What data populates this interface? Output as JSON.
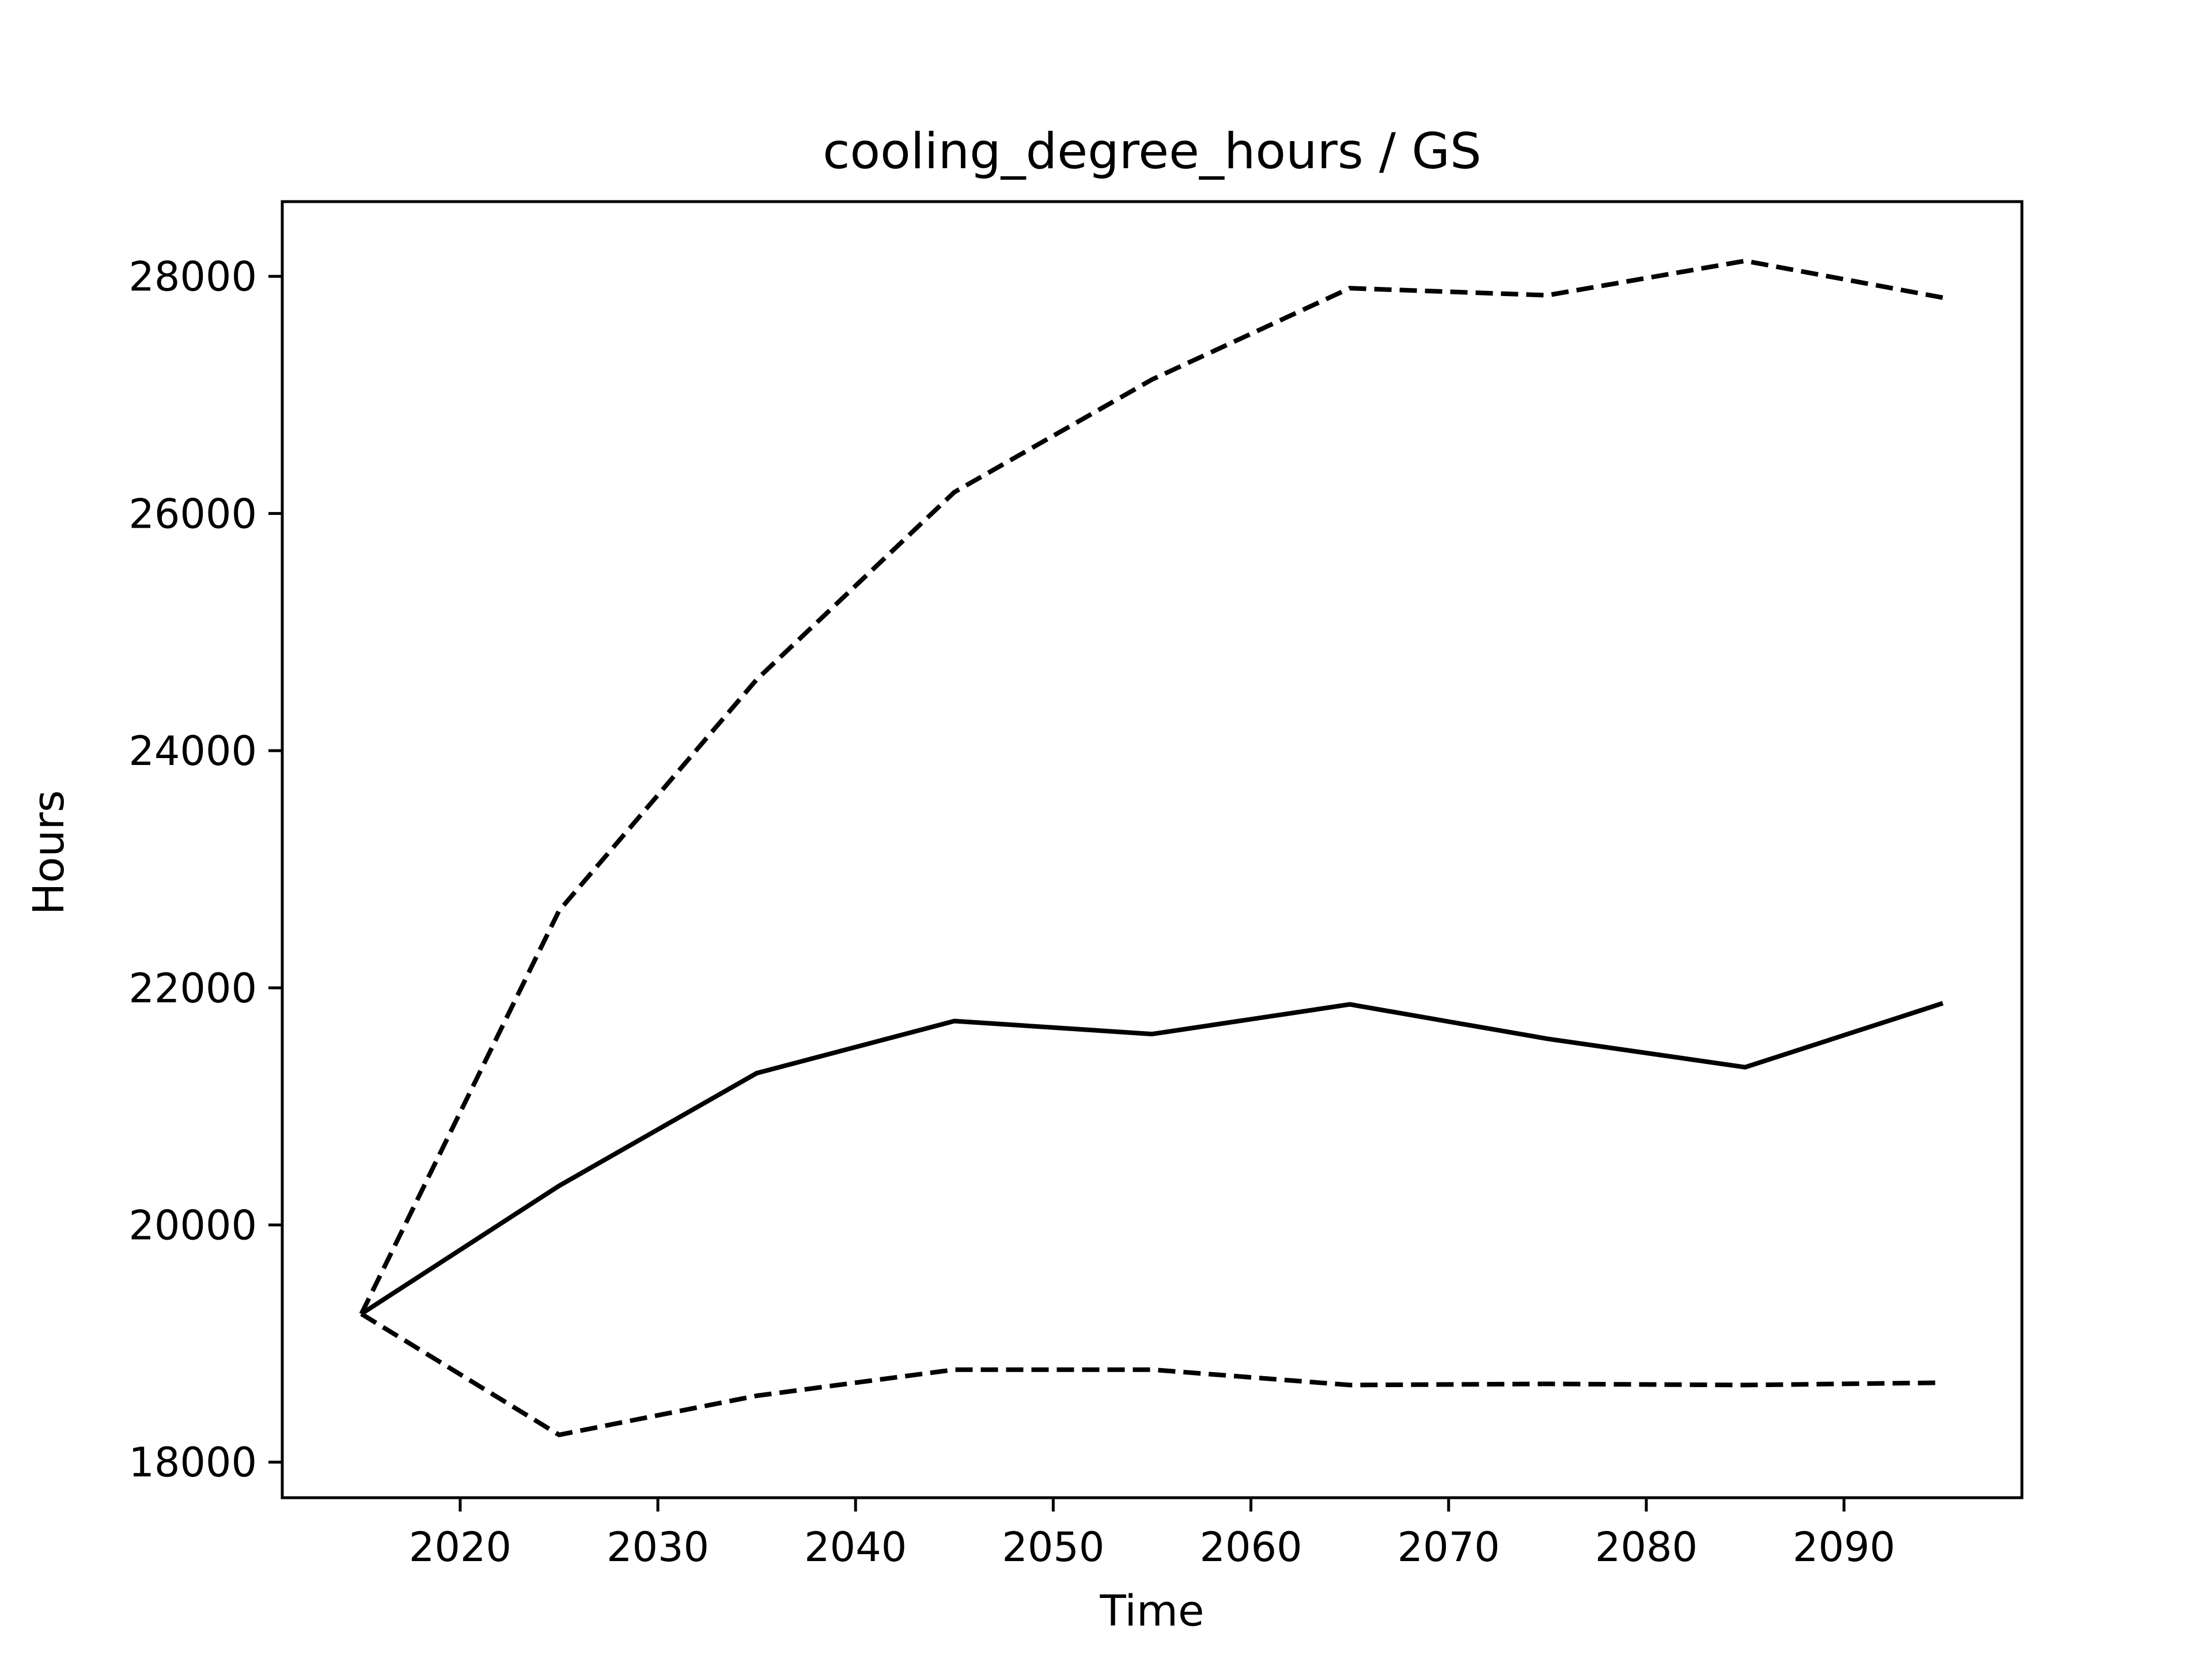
{
  "chart_data": {
    "type": "line",
    "title": "cooling_degree_hours / GS",
    "xlabel": "Time",
    "ylabel": "Hours",
    "xlim": [
      2011,
      2099
    ],
    "ylim": [
      17700,
      28630
    ],
    "x_ticks": [
      2020,
      2030,
      2040,
      2050,
      2060,
      2070,
      2080,
      2090
    ],
    "y_ticks": [
      18000,
      20000,
      22000,
      24000,
      26000,
      28000
    ],
    "grid": false,
    "legend": "none",
    "x": [
      2015,
      2025,
      2035,
      2045,
      2055,
      2065,
      2075,
      2085,
      2095
    ],
    "series": [
      {
        "style": "dashed",
        "color": "#000000",
        "values": [
          19250,
          22650,
          24600,
          26180,
          27130,
          27900,
          27840,
          28130,
          27820
        ]
      },
      {
        "style": "solid",
        "color": "#000000",
        "values": [
          19250,
          20330,
          21280,
          21720,
          21610,
          21860,
          21570,
          21330,
          21870
        ]
      },
      {
        "style": "dashed",
        "color": "#000000",
        "values": [
          19250,
          18230,
          18560,
          18780,
          18780,
          18650,
          18660,
          18650,
          18670
        ]
      }
    ]
  }
}
